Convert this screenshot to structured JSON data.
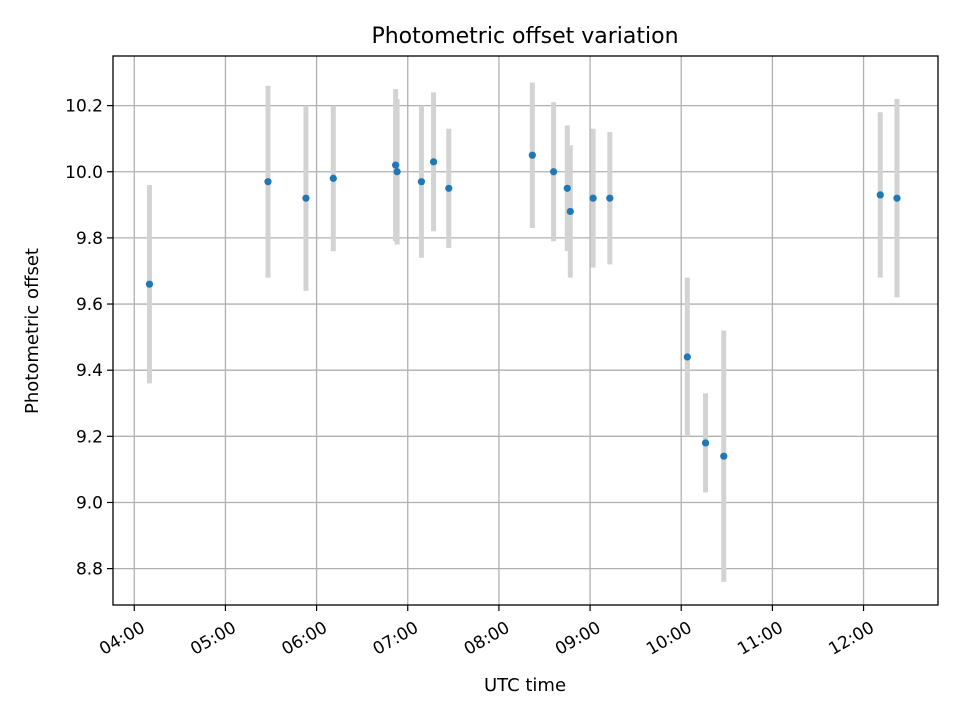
{
  "chart_data": {
    "type": "scatter",
    "title": "Photometric offset variation",
    "xlabel": "UTC time",
    "ylabel": "Photometric offset",
    "x_ticks": [
      "04:00",
      "05:00",
      "06:00",
      "07:00",
      "08:00",
      "09:00",
      "10:00",
      "11:00",
      "12:00"
    ],
    "y_ticks": [
      "8.8",
      "9.0",
      "9.2",
      "9.4",
      "9.6",
      "9.8",
      "10.0",
      "10.2"
    ],
    "xlim": [
      "03:46",
      "12:49"
    ],
    "ylim": [
      8.69,
      10.35
    ],
    "grid": true,
    "legend": "none",
    "colors": {
      "points": "#1f77b4",
      "errorbars": "#d3d3d3",
      "grid": "#b0b0b0"
    },
    "series": [
      {
        "points": [
          {
            "x": "04:10",
            "y": 9.66,
            "err": 0.3
          },
          {
            "x": "05:28",
            "y": 9.97,
            "err": 0.29
          },
          {
            "x": "05:53",
            "y": 9.92,
            "err": 0.28
          },
          {
            "x": "06:11",
            "y": 9.98,
            "err": 0.22
          },
          {
            "x": "06:52",
            "y": 10.02,
            "err": 0.23
          },
          {
            "x": "06:53",
            "y": 10.0,
            "err": 0.22
          },
          {
            "x": "07:09",
            "y": 9.97,
            "err": 0.23
          },
          {
            "x": "07:17",
            "y": 10.03,
            "err": 0.21
          },
          {
            "x": "07:27",
            "y": 9.95,
            "err": 0.18
          },
          {
            "x": "08:22",
            "y": 10.05,
            "err": 0.22
          },
          {
            "x": "08:36",
            "y": 10.0,
            "err": 0.21
          },
          {
            "x": "08:45",
            "y": 9.95,
            "err": 0.19
          },
          {
            "x": "08:47",
            "y": 9.88,
            "err": 0.2
          },
          {
            "x": "09:02",
            "y": 9.92,
            "err": 0.21
          },
          {
            "x": "09:13",
            "y": 9.92,
            "err": 0.2
          },
          {
            "x": "10:04",
            "y": 9.44,
            "err": 0.24
          },
          {
            "x": "10:16",
            "y": 9.18,
            "err": 0.15
          },
          {
            "x": "10:28",
            "y": 9.14,
            "err": 0.38
          },
          {
            "x": "12:11",
            "y": 9.93,
            "err": 0.25
          },
          {
            "x": "12:22",
            "y": 9.92,
            "err": 0.3
          }
        ]
      }
    ]
  }
}
